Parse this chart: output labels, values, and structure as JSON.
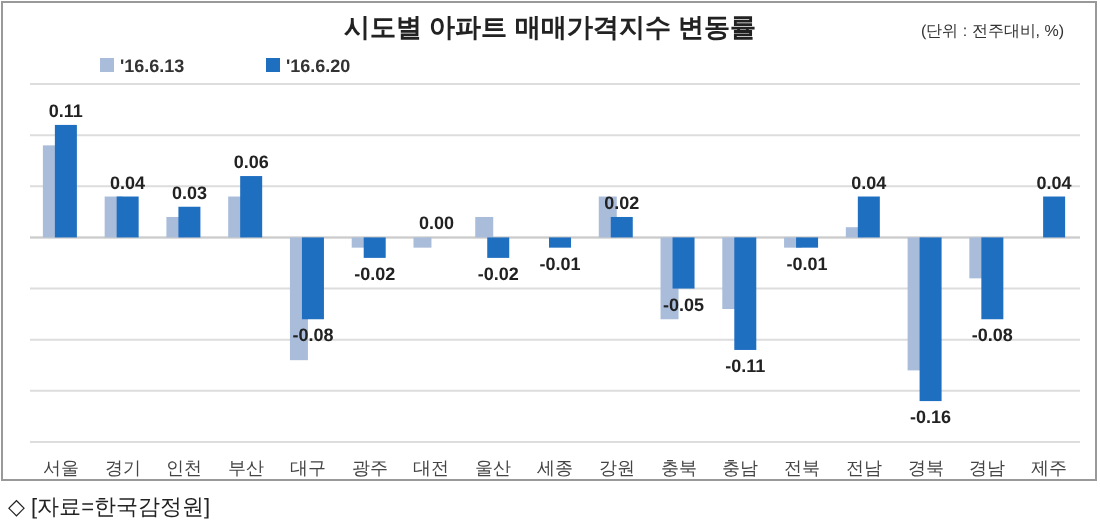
{
  "chart_data": {
    "type": "bar",
    "title": "시도별 아파트 매매가격지수 변동률",
    "annotations": [
      "(단위 : 전주대비, %)",
      "◇ [자료=한국감정원]"
    ],
    "categories": [
      "서울",
      "경기",
      "인천",
      "부산",
      "대구",
      "광주",
      "대전",
      "울산",
      "세종",
      "강원",
      "충북",
      "충남",
      "전북",
      "전남",
      "경북",
      "경남",
      "제주"
    ],
    "series": [
      {
        "name": "'16.6.13",
        "color": "#a9bddb",
        "values": [
          0.09,
          0.04,
          0.02,
          0.04,
          -0.12,
          -0.01,
          -0.01,
          0.02,
          0.0,
          0.04,
          -0.08,
          -0.07,
          -0.01,
          0.01,
          -0.13,
          -0.04,
          0.0
        ]
      },
      {
        "name": "'16.6.20",
        "color": "#1f6fc1",
        "values": [
          0.11,
          0.04,
          0.03,
          0.06,
          -0.08,
          -0.02,
          0.0,
          -0.02,
          -0.01,
          0.02,
          -0.05,
          -0.11,
          -0.01,
          0.04,
          -0.16,
          -0.08,
          0.04
        ],
        "value_labels": [
          "0.11",
          "0.04",
          "0.03",
          "0.06",
          "-0.08",
          "-0.02",
          "0.00",
          "-0.02",
          "-0.01",
          "0.02",
          "-0.05",
          "-0.11",
          "-0.01",
          "0.04",
          "-0.16",
          "-0.08",
          "0.04"
        ]
      }
    ],
    "ylim": [
      -0.2,
      0.15
    ],
    "yticks": [
      {
        "value": -0.2,
        "label": null
      },
      {
        "value": -0.15,
        "label": null
      },
      {
        "value": -0.1,
        "label": null
      },
      {
        "value": -0.05,
        "label": null
      },
      {
        "value": 0,
        "label": null
      },
      {
        "value": 0.05,
        "label": null
      },
      {
        "value": 0.1,
        "label": null
      },
      {
        "value": 0.15,
        "label": null
      }
    ],
    "tick_labels": "x",
    "grid": "y",
    "legend": "top left"
  }
}
